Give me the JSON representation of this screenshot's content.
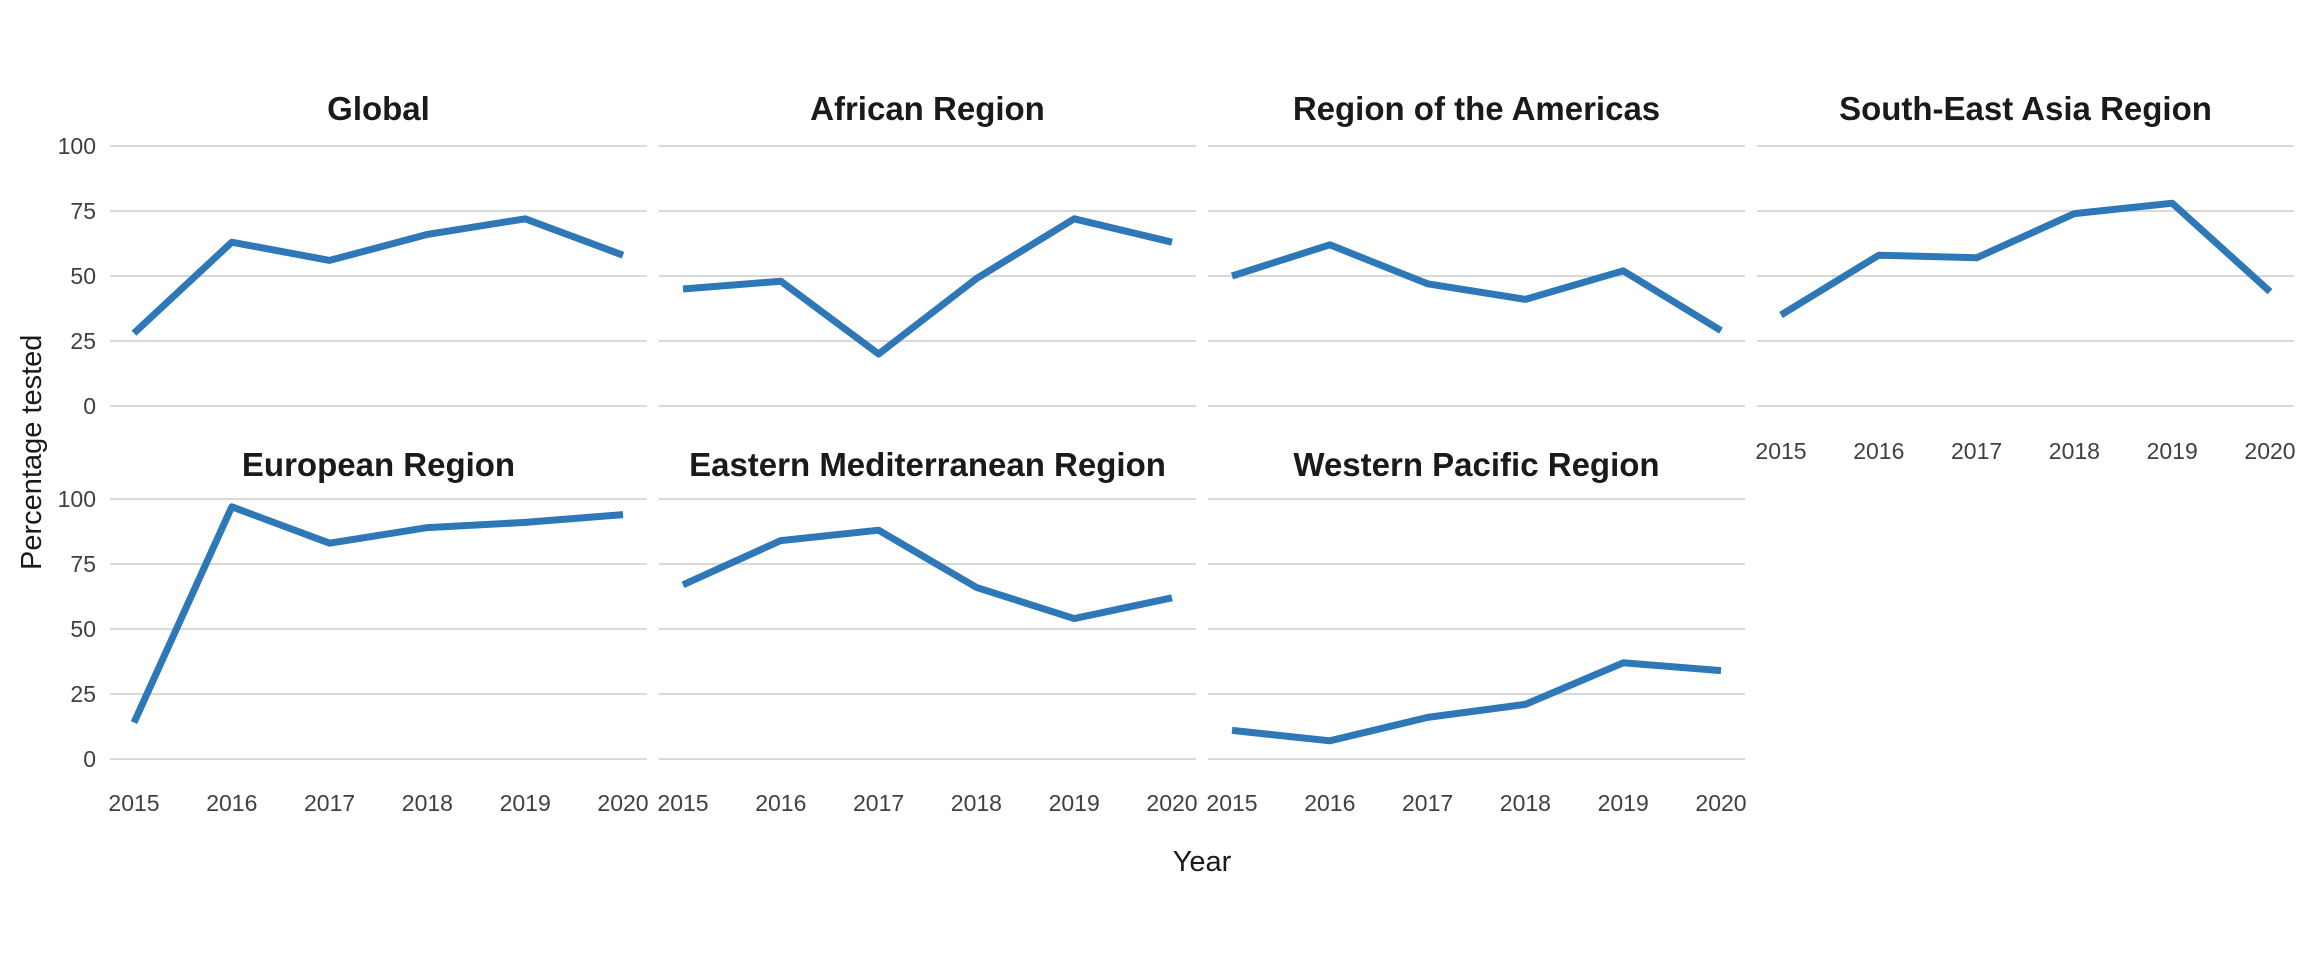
{
  "colors": {
    "line": "#2E78B8",
    "grid": "#D9D9D9",
    "panel_title_text": "#1A1A1A",
    "axis_title_text": "#1A1A1A",
    "tick_text": "#404040",
    "background": "#FFFFFF"
  },
  "chart_data": {
    "type": "line",
    "title": "",
    "xlabel": "Year",
    "ylabel": "Percentage tested",
    "x": [
      2015,
      2016,
      2017,
      2018,
      2019,
      2020
    ],
    "ylim": [
      0,
      100
    ],
    "yticks": [
      100,
      75,
      50,
      25,
      0
    ],
    "grid": "horizontal major gridlines only",
    "legend": "none",
    "facet_layout": "2 rows x 4 columns, 7 panels, y-axis labels on left column only, x-axis labels on bottom edge of each column",
    "facets": [
      {
        "title": "Global",
        "row": 0,
        "col": 0,
        "x_axis": false,
        "values": [
          28,
          63,
          56,
          66,
          72,
          58
        ]
      },
      {
        "title": "African Region",
        "row": 0,
        "col": 1,
        "x_axis": false,
        "values": [
          45,
          48,
          20,
          49,
          72,
          63
        ]
      },
      {
        "title": "Region of the Americas",
        "row": 0,
        "col": 2,
        "x_axis": false,
        "values": [
          50,
          62,
          47,
          41,
          52,
          29
        ]
      },
      {
        "title": "South-East Asia Region",
        "row": 0,
        "col": 3,
        "x_axis": true,
        "values": [
          35,
          58,
          57,
          74,
          78,
          44
        ]
      },
      {
        "title": "European Region",
        "row": 1,
        "col": 0,
        "x_axis": true,
        "values": [
          14,
          97,
          83,
          89,
          91,
          94
        ]
      },
      {
        "title": "Eastern Mediterranean Region",
        "row": 1,
        "col": 1,
        "x_axis": true,
        "values": [
          67,
          84,
          88,
          66,
          54,
          62
        ]
      },
      {
        "title": "Western Pacific Region",
        "row": 1,
        "col": 2,
        "x_axis": true,
        "values": [
          11,
          7,
          16,
          21,
          37,
          34
        ]
      }
    ]
  }
}
